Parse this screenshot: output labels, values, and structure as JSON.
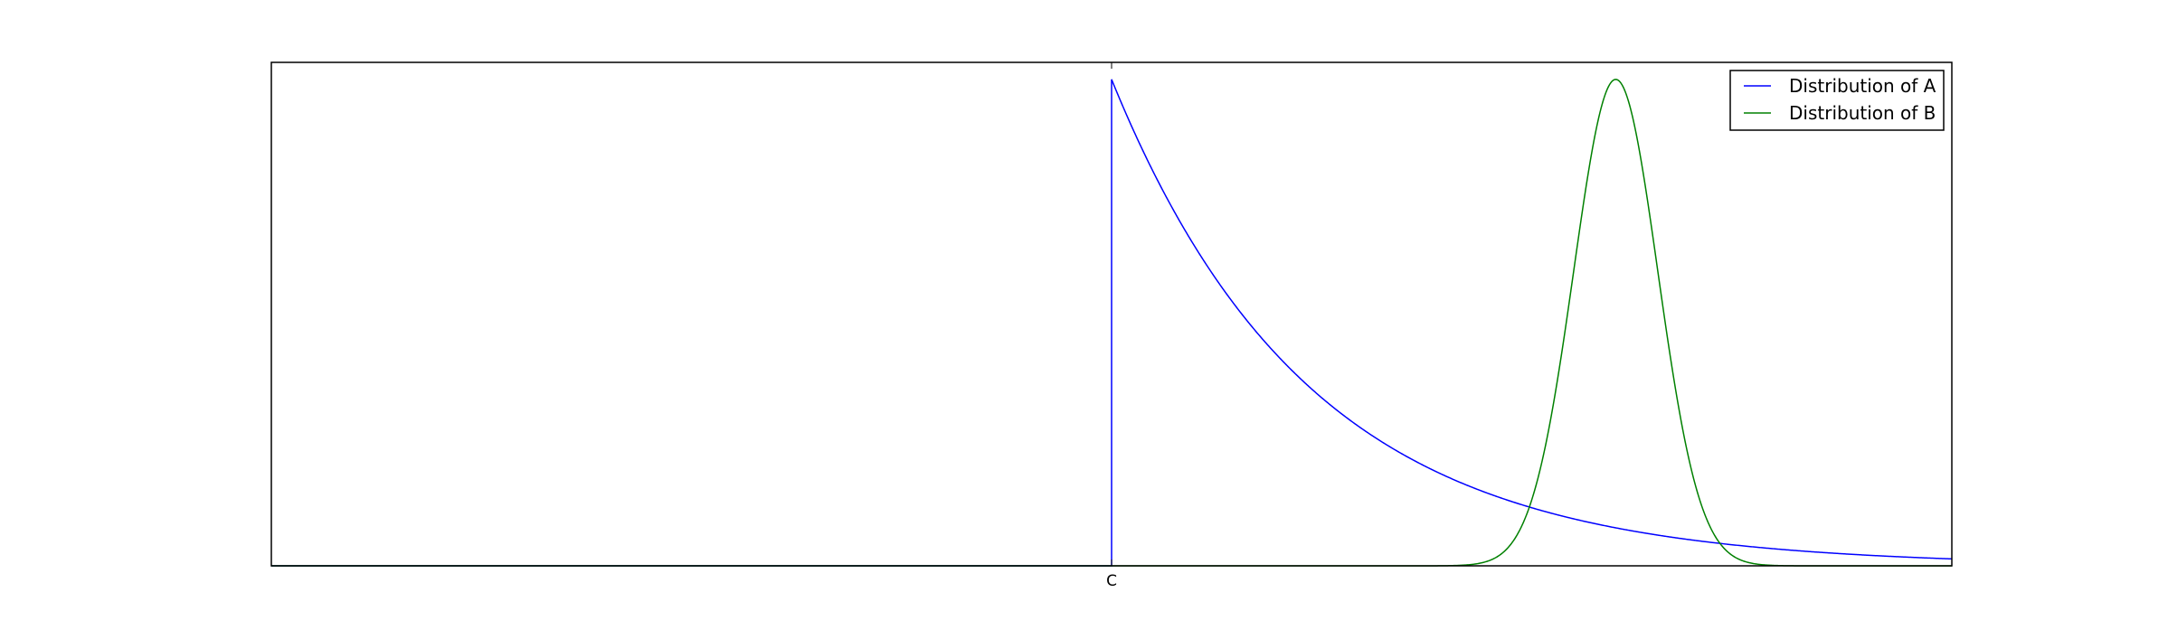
{
  "chart_data": {
    "type": "line",
    "title": "",
    "xlabel": "",
    "ylabel": "",
    "xlim": [
      0,
      1
    ],
    "ylim": [
      0,
      1.035
    ],
    "grid": false,
    "legend_position": "top-right",
    "x_ticks": [
      {
        "label": "C",
        "value": 0.5
      }
    ],
    "series": [
      {
        "name": "Distribution of A",
        "color": "#0000ff",
        "shape": "shifted-exponential",
        "start": 0.5,
        "peak": 1.0,
        "decay_rate": 8.5
      },
      {
        "name": "Distribution of B",
        "color": "#008000",
        "shape": "gaussian",
        "mean": 0.8,
        "std_dev": 0.025,
        "peak": 1.0
      }
    ]
  }
}
